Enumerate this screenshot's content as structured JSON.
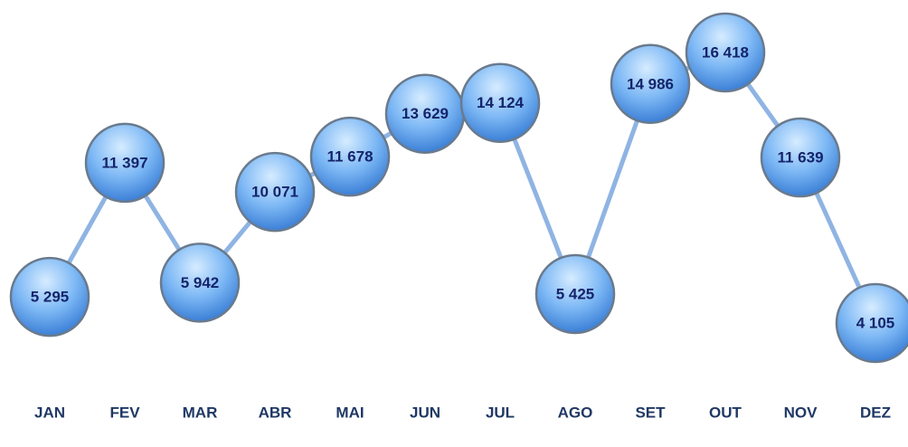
{
  "chart_data": {
    "type": "line",
    "categories": [
      "JAN",
      "FEV",
      "MAR",
      "ABR",
      "MAI",
      "JUN",
      "JUL",
      "AGO",
      "SET",
      "OUT",
      "NOV",
      "DEZ"
    ],
    "values": [
      5295,
      11397,
      5942,
      10071,
      11678,
      13629,
      14124,
      5425,
      14986,
      16418,
      11639,
      4105
    ],
    "value_labels": [
      "5 295",
      "11 397",
      "5 942",
      "10 071",
      "11 678",
      "13 629",
      "14 124",
      "5 425",
      "14 986",
      "16 418",
      "11 639",
      "4 105"
    ],
    "color": "#8fb4e3"
  }
}
